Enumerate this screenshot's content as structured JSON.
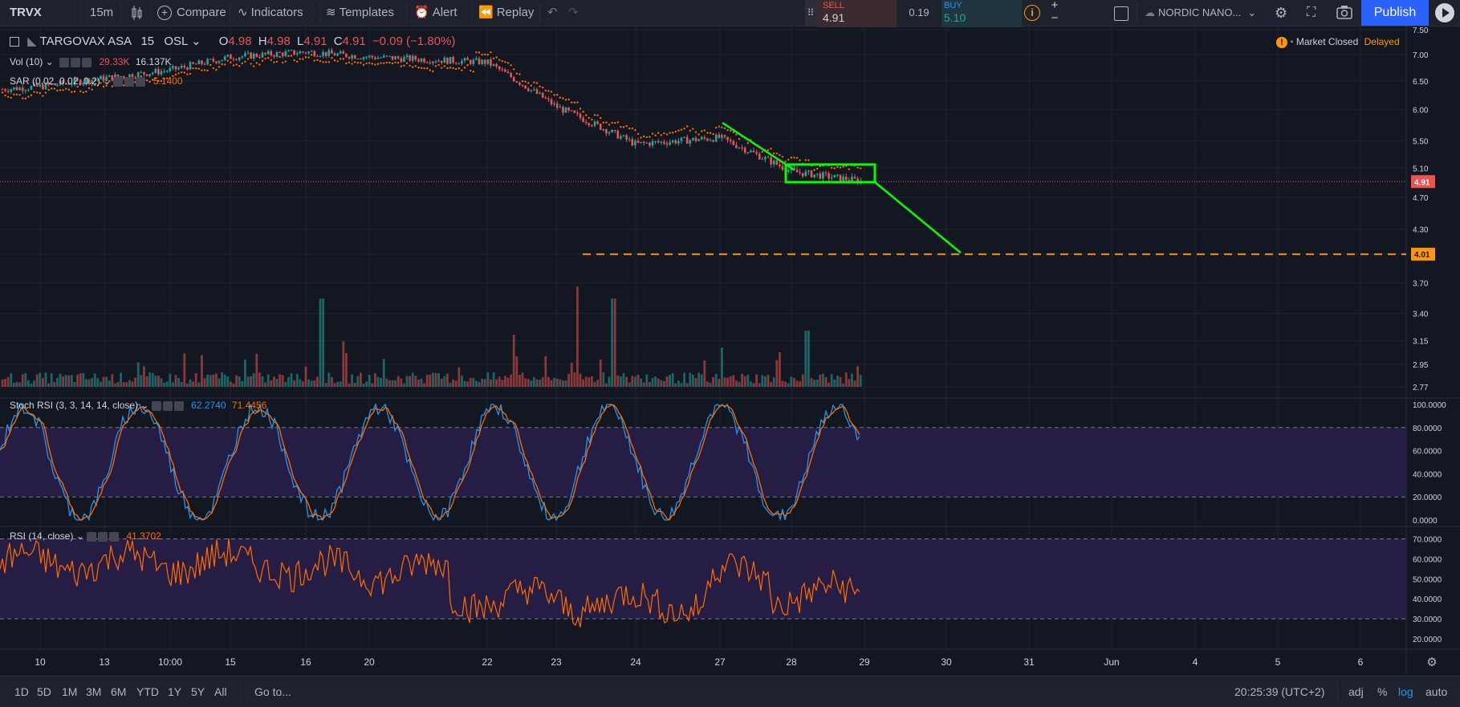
{
  "toolbar": {
    "symbol": "TRVX",
    "interval": "15m",
    "compare": "Compare",
    "indicators": "Indicators",
    "templates": "Templates",
    "alert": "Alert",
    "replay": "Replay",
    "sell_label": "SELL",
    "sell_price": "4.91",
    "spread": "0.19",
    "buy_label": "BUY",
    "buy_price": "5.10",
    "broker": "NORDIC NANO...",
    "publish": "Publish"
  },
  "legend": {
    "name": "TARGOVAX ASA",
    "interval": "15",
    "exchange": "OSL",
    "o_label": "O",
    "o": "4.98",
    "h_label": "H",
    "h": "4.98",
    "l_label": "L",
    "l": "4.91",
    "c_label": "C",
    "c": "4.91",
    "change": "−0.09 (−1.80%)",
    "vol_label": "Vol (10)",
    "vol_value": "29.33K",
    "vol_ma": "16.137K",
    "sar_label": "SAR (0.02, 0.02, 0.2)",
    "sar_value": "5.1400",
    "market_status": "Market Closed",
    "delayed": "Delayed"
  },
  "stoch": {
    "label": "Stoch RSI (3, 3, 14, 14, close)",
    "k": "62.2740",
    "d": "71.4456"
  },
  "rsi": {
    "label": "RSI (14, close)",
    "value": "41.3702"
  },
  "bottom": {
    "ranges": [
      "1D",
      "5D",
      "1M",
      "3M",
      "6M",
      "YTD",
      "1Y",
      "5Y",
      "All"
    ],
    "goto": "Go to...",
    "clock": "20:25:39 (UTC+2)",
    "adj": "adj",
    "pct": "%",
    "log": "log",
    "auto": "auto"
  },
  "colors": {
    "background": "#131722",
    "up": "#26a69a",
    "down": "#ef5350",
    "green_drawing": "#00ff00",
    "target_line": "#ff9800",
    "stoch_k": "#2196f3",
    "stoch_d": "#ff6d00",
    "accent": "#2962ff"
  },
  "chart_data": {
    "type": "candlestick",
    "price_axis_ticks": [
      "7.50",
      "7.00",
      "6.50",
      "6.00",
      "5.50",
      "5.10",
      "4.70",
      "4.30",
      "4.01",
      "3.70",
      "3.40",
      "3.15",
      "2.95",
      "2.77"
    ],
    "price_axis_scale": "log",
    "last_price": "4.91",
    "target_level": "4.01",
    "time_ticks": [
      "10",
      "13",
      "10:00",
      "15",
      "16",
      "20",
      "22",
      "23",
      "24",
      "27",
      "28",
      "29",
      "30",
      "31",
      "Jun",
      "4",
      "5",
      "6"
    ],
    "stoch_ticks": [
      "100.0000",
      "80.0000",
      "60.0000",
      "40.0000",
      "20.0000",
      "0.0000"
    ],
    "rsi_ticks": [
      "70.0000",
      "60.0000",
      "50.0000",
      "40.0000",
      "30.0000",
      "20.0000"
    ],
    "close_path": [
      {
        "day": "10",
        "close": 6.4
      },
      {
        "day": "13",
        "close": 6.55
      },
      {
        "day": "10:00",
        "close": 6.7
      },
      {
        "day": "15",
        "close": 6.95
      },
      {
        "day": "16",
        "close": 7.05
      },
      {
        "day": "20",
        "close": 6.95
      },
      {
        "day": "22",
        "close": 6.85
      },
      {
        "day": "23",
        "close": 6.05
      },
      {
        "day": "24",
        "close": 5.45
      },
      {
        "day": "27",
        "close": 5.55
      },
      {
        "day": "28",
        "close": 5.05
      },
      {
        "day": "29",
        "close": 4.91
      }
    ]
  }
}
